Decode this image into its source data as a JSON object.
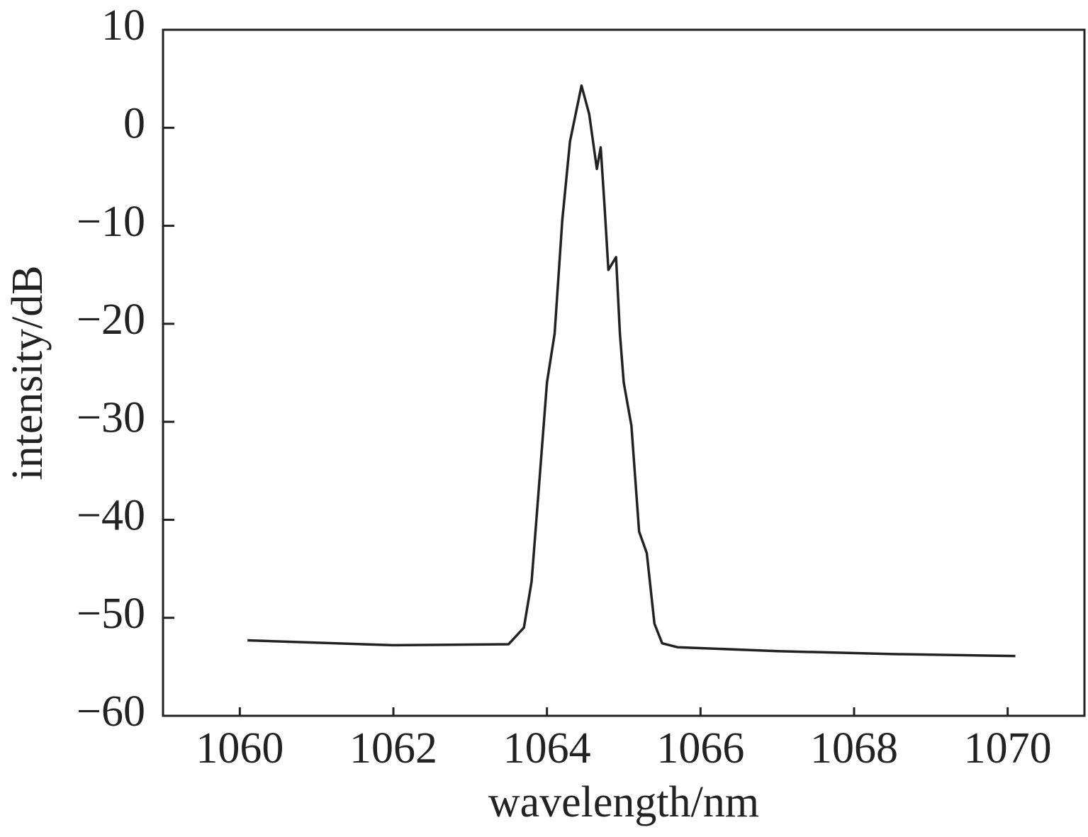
{
  "chart_data": {
    "type": "line",
    "x_label": "wavelength/nm",
    "y_label": "intensity/dB",
    "xlim": [
      1059,
      1071
    ],
    "xticks": [
      1060,
      1062,
      1064,
      1066,
      1068,
      1070
    ],
    "ylim": [
      -60,
      10
    ],
    "yticks": [
      {
        "value": -60,
        "label": "−60"
      },
      {
        "value": -50,
        "label": "−50"
      },
      {
        "value": -40,
        "label": "−40"
      },
      {
        "value": -30,
        "label": "−30"
      },
      {
        "value": -20,
        "label": "−20"
      },
      {
        "value": -10,
        "label": "−10"
      },
      0,
      10
    ],
    "series": [
      {
        "color": "#222222",
        "x": [
          1060.1,
          1062,
          1063.5,
          1063.7,
          1063.8,
          1063.9,
          1064.0,
          1064.1,
          1064.2,
          1064.3,
          1064.45,
          1064.55,
          1064.65,
          1064.7,
          1064.75,
          1064.8,
          1064.9,
          1064.95,
          1065.0,
          1065.1,
          1065.2,
          1065.3,
          1065.4,
          1065.5,
          1065.7,
          1067,
          1068.5,
          1070.1
        ],
        "values": [
          -52.3,
          -52.8,
          -52.7,
          -51,
          -46.3,
          -36.2,
          -26,
          -21,
          -9.4,
          -1.4,
          4.3,
          1.4,
          -4.2,
          -2,
          -8,
          -14.5,
          -13.2,
          -21,
          -26,
          -30.4,
          -41.2,
          -43.4,
          -50.6,
          -52.6,
          -53,
          -53.4,
          -53.7,
          -53.9
        ]
      }
    ]
  }
}
